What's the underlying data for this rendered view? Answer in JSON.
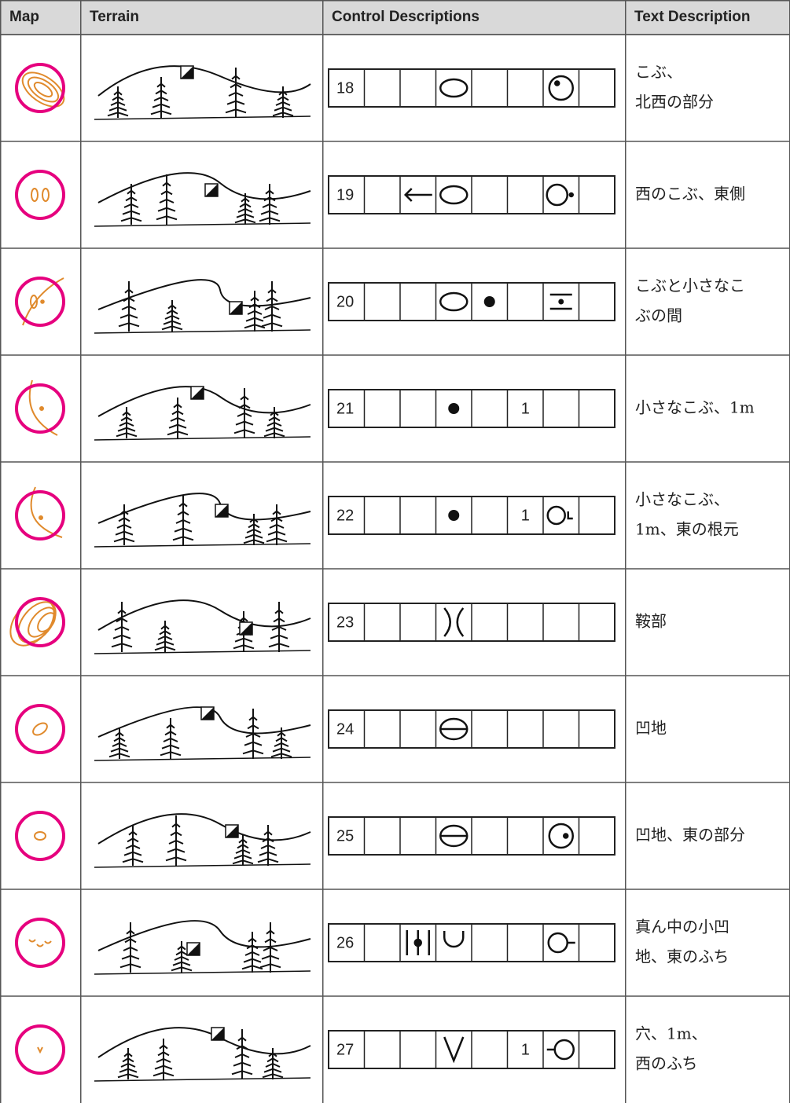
{
  "table": {
    "headers": [
      "Map",
      "Terrain",
      "Control Descriptions",
      "Text Description"
    ],
    "rows": [
      {
        "number": 18,
        "text": [
          "こぶ、",
          "北西の部分"
        ]
      },
      {
        "number": 19,
        "text": [
          "西のこぶ、東側"
        ]
      },
      {
        "number": 20,
        "text": [
          "こぶと小さなこ",
          "ぶの間"
        ]
      },
      {
        "number": 21,
        "dimension": 1,
        "text": [
          "小さなこぶ、1m"
        ]
      },
      {
        "number": 22,
        "dimension": 1,
        "text": [
          "小さなこぶ、",
          "1m、東の根元"
        ]
      },
      {
        "number": 23,
        "text": [
          "鞍部"
        ]
      },
      {
        "number": 24,
        "text": [
          "凹地"
        ]
      },
      {
        "number": 25,
        "text": [
          "凹地、東の部分"
        ]
      },
      {
        "number": 26,
        "text": [
          "真ん中の小凹",
          "地、東のふち"
        ]
      },
      {
        "number": 27,
        "dimension": 1,
        "text": [
          "穴、1m、",
          "西のふち"
        ]
      }
    ]
  }
}
